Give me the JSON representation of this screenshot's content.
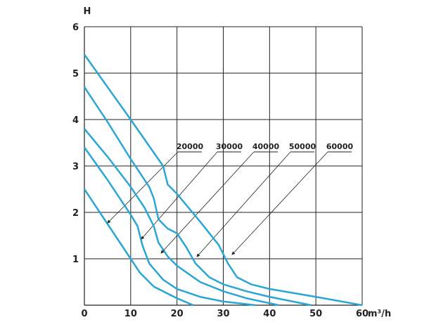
{
  "chart_data": {
    "type": "line",
    "y_label": "H",
    "x_unit": "m³/h",
    "xlim": [
      0,
      60
    ],
    "ylim": [
      0,
      6
    ],
    "xticks": [
      0,
      10,
      20,
      30,
      40,
      50,
      60
    ],
    "yticks": [
      1,
      2,
      3,
      4,
      5,
      6
    ],
    "grid": true,
    "series": [
      {
        "name": "20000",
        "color": "#2aa6d6",
        "x": [
          0,
          5,
          10,
          12,
          15,
          20,
          23.5
        ],
        "values": [
          2.5,
          1.75,
          1.0,
          0.7,
          0.4,
          0.15,
          0
        ]
      },
      {
        "name": "30000",
        "color": "#2aa6d6",
        "x": [
          0,
          5,
          10,
          11.5,
          12.5,
          14,
          17,
          20,
          25,
          30,
          37
        ],
        "values": [
          3.4,
          2.7,
          1.95,
          1.7,
          1.3,
          0.9,
          0.55,
          0.35,
          0.18,
          0.08,
          0
        ]
      },
      {
        "name": "40000",
        "color": "#2aa6d6",
        "x": [
          0,
          5,
          10,
          13,
          15,
          16,
          18,
          20,
          25,
          30,
          35,
          42
        ],
        "values": [
          3.8,
          3.2,
          2.55,
          2.1,
          1.7,
          1.35,
          1.05,
          0.85,
          0.5,
          0.3,
          0.15,
          0
        ]
      },
      {
        "name": "50000",
        "color": "#2aa6d6",
        "x": [
          0,
          5,
          10,
          14,
          15,
          16,
          18,
          20,
          22,
          24,
          27,
          30,
          35,
          40,
          49
        ],
        "values": [
          4.7,
          3.95,
          3.15,
          2.55,
          2.3,
          1.85,
          1.65,
          1.55,
          1.25,
          0.9,
          0.6,
          0.45,
          0.3,
          0.18,
          0
        ]
      },
      {
        "name": "60000",
        "color": "#2aa6d6",
        "x": [
          0,
          10,
          17,
          18,
          20,
          25,
          29,
          31,
          33,
          36,
          40,
          50,
          60
        ],
        "values": [
          5.4,
          4.0,
          3.0,
          2.6,
          2.4,
          1.8,
          1.3,
          0.9,
          0.6,
          0.45,
          0.35,
          0.18,
          0
        ]
      }
    ]
  }
}
